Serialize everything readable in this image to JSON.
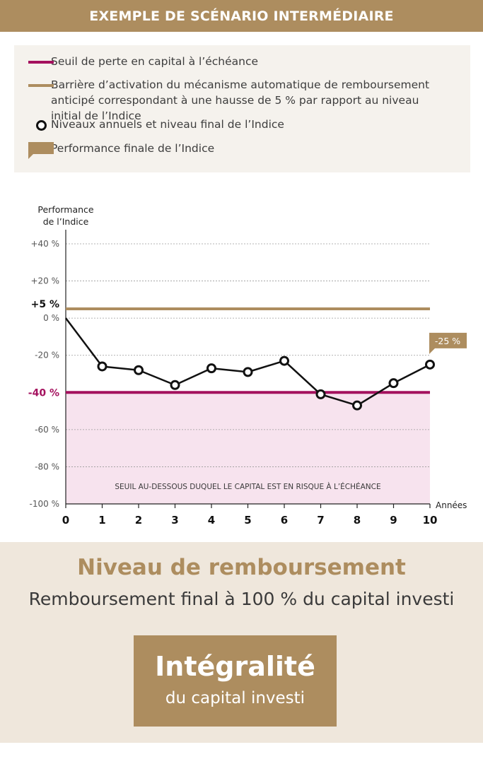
{
  "header": {
    "title": "EXEMPLE DE SCÉNARIO INTERMÉDIAIRE"
  },
  "legend": {
    "items": [
      {
        "text": "Seuil de perte en capital à l’échéance",
        "color": "#a4115e"
      },
      {
        "text": "Barrière d’activation du mécanisme automatique de remboursement anticipé correspondant à une hausse de 5 % par rapport au niveau initial de l’Indice",
        "color": "#ad8d5f"
      },
      {
        "text": "Niveaux annuels et niveau final de l’Indice",
        "color": "#111111"
      },
      {
        "text": "Performance finale de l’Indice",
        "color": "#ad8d5f"
      }
    ]
  },
  "chart_data": {
    "type": "line",
    "ylabel": "Performance de l’Indice",
    "xlabel": "Années",
    "ylim": [
      -100,
      40
    ],
    "xlim": [
      0,
      10
    ],
    "y_ticks": [
      {
        "value": 40,
        "label": "+40 %"
      },
      {
        "value": 20,
        "label": "+20 %"
      },
      {
        "value": 0,
        "label": "0 %"
      },
      {
        "value": -20,
        "label": "-20 %"
      },
      {
        "value": -60,
        "label": "-60 %"
      },
      {
        "value": -80,
        "label": "-80 %"
      },
      {
        "value": -100,
        "label": "-100 %"
      }
    ],
    "x_ticks": [
      "0",
      "1",
      "2",
      "3",
      "4",
      "5",
      "6",
      "7",
      "8",
      "9",
      "10"
    ],
    "grid": true,
    "series": [
      {
        "x": [
          0,
          1,
          2,
          3,
          4,
          5,
          6,
          7,
          8,
          9,
          10
        ],
        "values": [
          0,
          -26,
          -28,
          -36,
          -27,
          -29,
          -23,
          -41,
          -47,
          -35,
          -25
        ]
      }
    ],
    "reference_lines": [
      {
        "value": 5,
        "label": "+5 %",
        "color": "#ad8d5f"
      },
      {
        "value": -40,
        "label": "-40 %",
        "color": "#a4115e"
      }
    ],
    "risk_zone": {
      "from": -100,
      "to": -40,
      "label": "SEUIL AU-DESSOUS DUQUEL LE CAPITAL EST EN RISQUE À L’ÉCHÉANCE",
      "color": "#f7e3ee"
    },
    "final_label": "-25 %"
  },
  "result": {
    "title": "Niveau de remboursement",
    "subtitle": "Remboursement final à 100 % du capital investi",
    "box_big": "Intégralité",
    "box_small": "du capital investi"
  }
}
